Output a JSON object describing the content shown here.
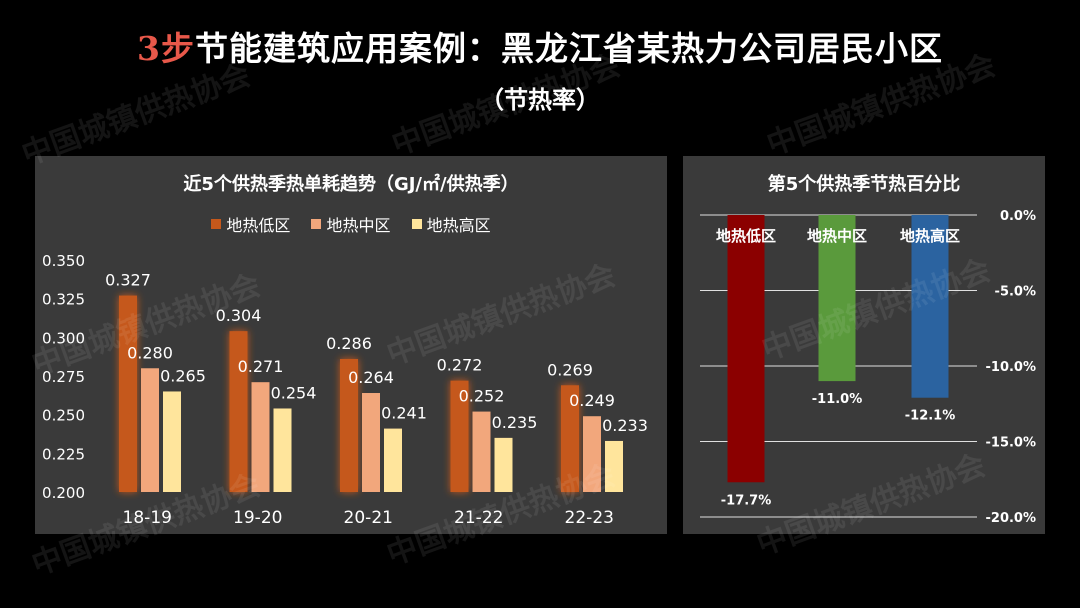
{
  "header": {
    "title_accent": "3步",
    "title_rest": "节能建筑应用案例：黑龙江省某热力公司居民小区",
    "subtitle": "（节热率）"
  },
  "watermark": "中国城镇供热协会",
  "colors": {
    "low_zone": "#c5581b",
    "mid_zone": "#f2a77c",
    "high_zone": "#ffe59c",
    "pct_low": "#8b0000",
    "pct_mid": "#5a9a3c",
    "pct_high": "#2b63a0"
  },
  "chart_data": [
    {
      "type": "bar",
      "title": "近5个供热季热单耗趋势（GJ/㎡/供热季）",
      "categories": [
        "18-19",
        "19-20",
        "20-21",
        "21-22",
        "22-23"
      ],
      "series": [
        {
          "name": "地热低区",
          "values": [
            0.327,
            0.304,
            0.286,
            0.272,
            0.269
          ]
        },
        {
          "name": "地热中区",
          "values": [
            0.28,
            0.271,
            0.264,
            0.252,
            0.249
          ]
        },
        {
          "name": "地热高区",
          "values": [
            0.265,
            0.254,
            0.241,
            0.235,
            0.233
          ]
        }
      ],
      "ylim": [
        0.2,
        0.35
      ],
      "yticks": [
        "0.350",
        "0.325",
        "0.300",
        "0.275",
        "0.250",
        "0.225",
        "0.200"
      ],
      "legend": "top-center",
      "grid": false
    },
    {
      "type": "bar",
      "title": "第5个供热季节热百分比",
      "categories": [
        "地热低区",
        "地热中区",
        "地热高区"
      ],
      "values": [
        -17.7,
        -11.0,
        -12.1
      ],
      "value_labels": [
        "-17.7%",
        "-11.0%",
        "-12.1%"
      ],
      "ylim": [
        -20,
        0
      ],
      "yticks": [
        "0.0%",
        "-5.0%",
        "-10.0%",
        "-15.0%",
        "-20.0%"
      ],
      "grid": true,
      "axis_position": "right"
    }
  ]
}
